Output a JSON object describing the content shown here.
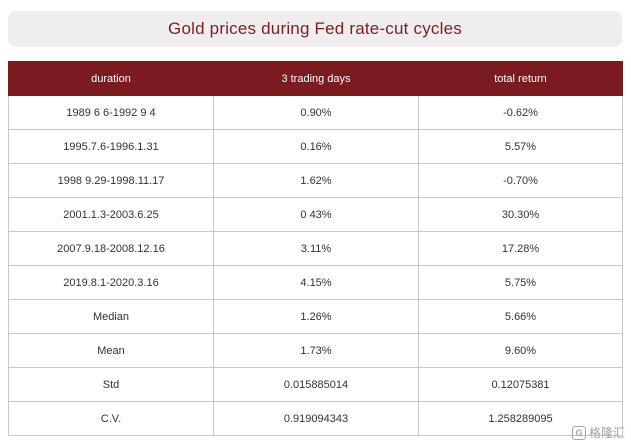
{
  "title": "Gold prices during Fed rate-cut cycles",
  "table": {
    "headers": [
      "duration",
      "3 trading days",
      "total return"
    ],
    "rows": [
      [
        "1989 6 6-1992 9 4",
        "0.90%",
        "-0.62%"
      ],
      [
        "1995.7.6-1996.1.31",
        "0.16%",
        "5.57%"
      ],
      [
        "1998 9.29-1998.11.17",
        "1.62%",
        "-0.70%"
      ],
      [
        "2001.1.3-2003.6.25",
        "0 43%",
        "30.30%"
      ],
      [
        "2007.9.18-2008.12.16",
        "3.11%",
        "17.28%"
      ],
      [
        "2019.8.1-2020.3.16",
        "4.15%",
        "5.75%"
      ],
      [
        "Median",
        "1.26%",
        "5.66%"
      ],
      [
        "Mean",
        "1.73%",
        "9.60%"
      ],
      [
        "Std",
        "0.015885014",
        "0.12075381"
      ],
      [
        "C.V.",
        "0.919094343",
        "1.258289095"
      ]
    ]
  },
  "watermark": {
    "icon_glyph": "G",
    "text": "格隆汇"
  }
}
